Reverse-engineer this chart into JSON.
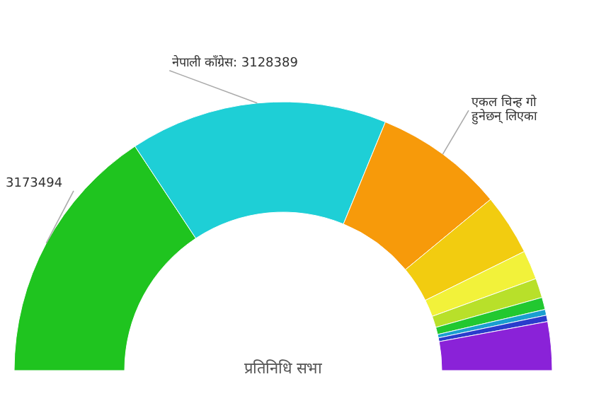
{
  "chart_data": {
    "type": "donut",
    "title": "प्रतिनिधि सभा",
    "categories": [
      null,
      "नेपाली काँग्रेस",
      "एकल चिन्ह गो हुनेछन् लिएका",
      null,
      null,
      null,
      null,
      null,
      null,
      null
    ],
    "values": [
      3173494,
      3128389,
      1576000,
      744000,
      354000,
      236000,
      148000,
      71000,
      77000,
      590000
    ],
    "value_labels": [
      "3173494",
      "3128389",
      null,
      null,
      null,
      null,
      null,
      null,
      null,
      null
    ],
    "colors": [
      "#1fc41f",
      "#1ecfd6",
      "#f79a0a",
      "#f2cc10",
      "#f2f23a",
      "#b8e02a",
      "#22c830",
      "#1a9fd0",
      "#2a3ccc",
      "#8a22d8"
    ]
  }
}
